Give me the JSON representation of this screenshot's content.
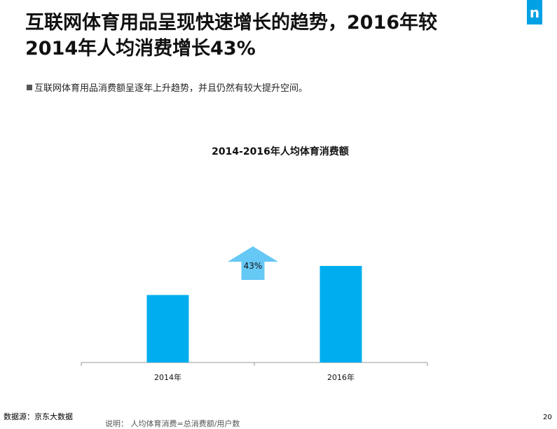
{
  "slide": {
    "title_line1": "互联网体育用品呈现快速增长的趋势，2016年较",
    "title_line2": "2014年人均消费增长43%",
    "bullet": "互联网体育用品消费额呈逐年上升趋势，并且仍然有较大提升空间。",
    "logo": "n",
    "source": "数据源：京东大数据",
    "note": "说明：  人均体育消费=总消费额/用户数",
    "page_number": "20"
  },
  "chart_data": {
    "type": "bar",
    "title": "2014-2016年人均体育消费额",
    "categories": [
      "2014年",
      "2016年"
    ],
    "values": [
      100,
      143
    ],
    "annotation": "43%",
    "xlabel": "",
    "ylabel": "",
    "colors": {
      "bar": "#00aeef",
      "arrow": "#66c8f5",
      "axis": "#999999"
    }
  }
}
